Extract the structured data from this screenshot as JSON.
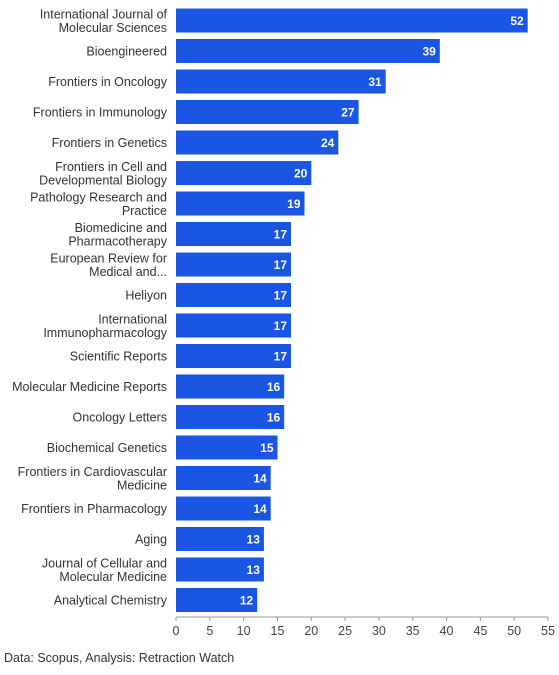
{
  "chart_data": {
    "type": "bar",
    "orientation": "horizontal",
    "categories": [
      "International Journal of Molecular Sciences",
      "Bioengineered",
      "Frontiers in Oncology",
      "Frontiers in Immunology",
      "Frontiers in Genetics",
      "Frontiers in Cell and Developmental Biology",
      "Pathology Research and Practice",
      "Biomedicine and Pharmacotherapy",
      "European Review for Medical and...",
      "Heliyon",
      "International Immunopharmacology",
      "Scientific Reports",
      "Molecular Medicine Reports",
      "Oncology Letters",
      "Biochemical Genetics",
      "Frontiers in Cardiovascular Medicine",
      "Frontiers in Pharmacology",
      "Aging",
      "Journal of Cellular and Molecular Medicine",
      "Analytical Chemistry"
    ],
    "category_lines": [
      [
        "International Journal of",
        "Molecular Sciences"
      ],
      [
        "Bioengineered"
      ],
      [
        "Frontiers in Oncology"
      ],
      [
        "Frontiers in Immunology"
      ],
      [
        "Frontiers in Genetics"
      ],
      [
        "Frontiers in Cell and",
        "Developmental Biology"
      ],
      [
        "Pathology Research and",
        "Practice"
      ],
      [
        "Biomedicine and",
        "Pharmacotherapy"
      ],
      [
        "European Review for",
        "Medical and..."
      ],
      [
        "Heliyon"
      ],
      [
        "International",
        "Immunopharmacology"
      ],
      [
        "Scientific Reports"
      ],
      [
        "Molecular Medicine Reports"
      ],
      [
        "Oncology Letters"
      ],
      [
        "Biochemical Genetics"
      ],
      [
        "Frontiers in Cardiovascular",
        "Medicine"
      ],
      [
        "Frontiers in Pharmacology"
      ],
      [
        "Aging"
      ],
      [
        "Journal of Cellular and",
        "Molecular Medicine"
      ],
      [
        "Analytical Chemistry"
      ]
    ],
    "values": [
      52,
      39,
      31,
      27,
      24,
      20,
      19,
      17,
      17,
      17,
      17,
      17,
      16,
      16,
      15,
      14,
      14,
      13,
      13,
      12
    ],
    "xlim": [
      0,
      55
    ],
    "xticks": [
      0,
      5,
      10,
      15,
      20,
      25,
      30,
      35,
      40,
      45,
      50,
      55
    ],
    "title": "",
    "xlabel": "",
    "ylabel": "",
    "grid": false,
    "data_labels": "inside-end",
    "colors": {
      "bar": "#1a55e3",
      "value_label": "#ffffff",
      "axis": "#999999"
    }
  },
  "source_note": "Data: Scopus, Analysis: Retraction Watch"
}
